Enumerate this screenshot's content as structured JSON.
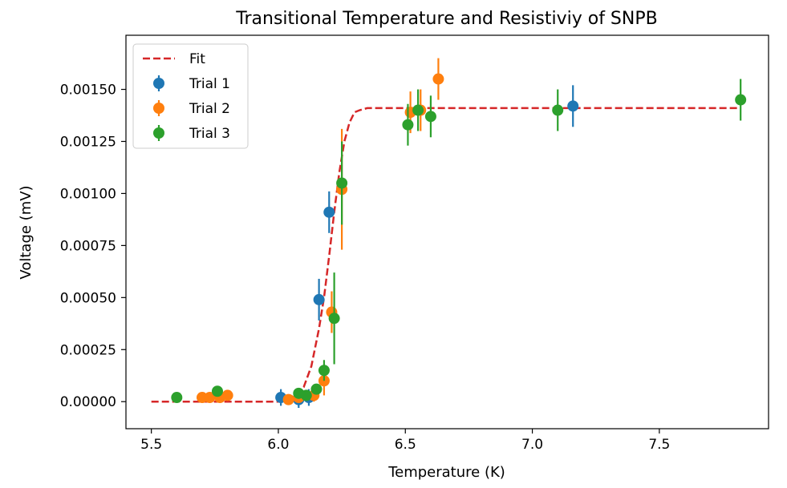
{
  "chart_data": {
    "type": "scatter",
    "title": "Transitional Temperature and Resistiviy of SNPB",
    "xlabel": "Temperature (K)",
    "ylabel": "Voltage (mV)",
    "xlim": [
      5.4,
      7.93
    ],
    "ylim": [
      -0.00013,
      0.00176
    ],
    "xticks": [
      5.5,
      6.0,
      6.5,
      7.0,
      7.5
    ],
    "xtick_labels": [
      "5.5",
      "6.0",
      "6.5",
      "7.0",
      "7.5"
    ],
    "yticks": [
      0.0,
      0.00025,
      0.0005,
      0.00075,
      0.001,
      0.00125,
      0.0015
    ],
    "ytick_labels": [
      "0.00000",
      "0.00025",
      "0.00050",
      "0.00075",
      "0.00100",
      "0.00125",
      "0.00150"
    ],
    "grid": false,
    "legend_position": "top-left",
    "legend": [
      "Fit",
      "Trial 1",
      "Trial 2",
      "Trial 3"
    ],
    "fit": {
      "name": "Fit",
      "color": "#d62728",
      "style": "dashed",
      "x": [
        5.5,
        5.6,
        5.7,
        5.8,
        5.9,
        6.0,
        6.05,
        6.1,
        6.13,
        6.16,
        6.18,
        6.2,
        6.22,
        6.24,
        6.26,
        6.28,
        6.3,
        6.32,
        6.35,
        6.4,
        6.5,
        7.0,
        7.5,
        7.82
      ],
      "y": [
        0.0,
        0.0,
        0.0,
        0.0,
        0.0,
        0.0,
        2e-05,
        7e-05,
        0.00017,
        0.00035,
        0.0005,
        0.0007,
        0.00091,
        0.0011,
        0.00125,
        0.00134,
        0.00139,
        0.0014,
        0.00141,
        0.00141,
        0.00141,
        0.00141,
        0.00141,
        0.00141
      ]
    },
    "series": [
      {
        "name": "Trial 1",
        "color": "#1f77b4",
        "x": [
          6.01,
          6.08,
          6.12,
          6.16,
          6.2,
          7.16
        ],
        "y": [
          2e-05,
          1e-05,
          2e-05,
          0.00049,
          0.00091,
          0.00142
        ],
        "err": [
          4e-05,
          4e-05,
          4e-05,
          0.0001,
          0.0001,
          0.0001
        ]
      },
      {
        "name": "Trial 2",
        "color": "#ff7f0e",
        "x": [
          5.7,
          5.73,
          5.77,
          5.8,
          6.04,
          6.08,
          6.14,
          6.18,
          6.21,
          6.25,
          6.52,
          6.56,
          6.63
        ],
        "y": [
          2e-05,
          2e-05,
          2e-05,
          3e-05,
          1e-05,
          2e-05,
          3e-05,
          0.0001,
          0.00043,
          0.00102,
          0.00139,
          0.0014,
          0.00155
        ],
        "err": [
          0.0,
          0.0,
          0.0,
          0.0,
          0.0,
          0.0,
          3e-05,
          7e-05,
          0.0001,
          0.00029,
          0.0001,
          0.0001,
          0.0001
        ]
      },
      {
        "name": "Trial 3",
        "color": "#2ca02c",
        "x": [
          5.6,
          5.76,
          6.08,
          6.11,
          6.15,
          6.18,
          6.22,
          6.25,
          6.51,
          6.55,
          6.6,
          7.1,
          7.82
        ],
        "y": [
          2e-05,
          5e-05,
          4e-05,
          3e-05,
          6e-05,
          0.00015,
          0.0004,
          0.00105,
          0.00133,
          0.0014,
          0.00137,
          0.0014,
          0.00145
        ],
        "err": [
          0.0,
          0.0,
          0.0,
          0.0,
          0.0,
          5e-05,
          0.00022,
          0.0002,
          0.0001,
          0.0001,
          0.0001,
          0.0001,
          0.0001
        ]
      }
    ]
  }
}
